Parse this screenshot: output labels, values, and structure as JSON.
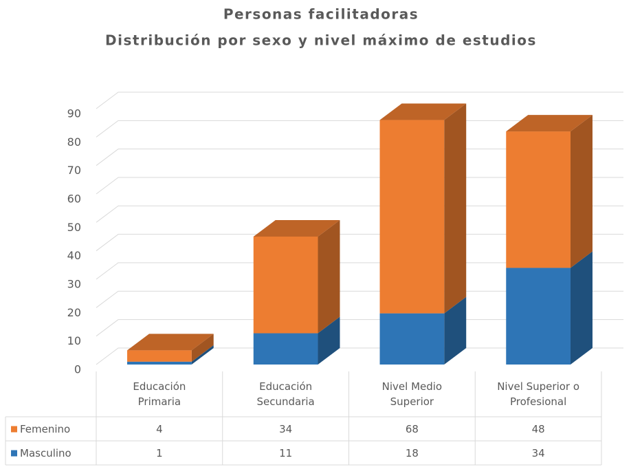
{
  "chart_data": {
    "type": "bar3d_stacked",
    "title": "Personas facilitadoras",
    "subtitle": "Distribución por sexo y nivel máximo de estudios",
    "categories": [
      "Educación Primaria",
      "Educación Secundaria",
      "Nivel Medio Superior",
      "Nivel Superior o Profesional"
    ],
    "series": [
      {
        "name": "Masculino",
        "color": "#2e75b6",
        "values": [
          1,
          11,
          18,
          34
        ]
      },
      {
        "name": "Femenino",
        "color": "#ed7d31",
        "values": [
          4,
          34,
          68,
          48
        ]
      }
    ],
    "ylim": [
      0,
      90
    ],
    "yticks": [
      0,
      10,
      20,
      30,
      40,
      50,
      60,
      70,
      80,
      90
    ],
    "grid": true,
    "data_table": true
  }
}
